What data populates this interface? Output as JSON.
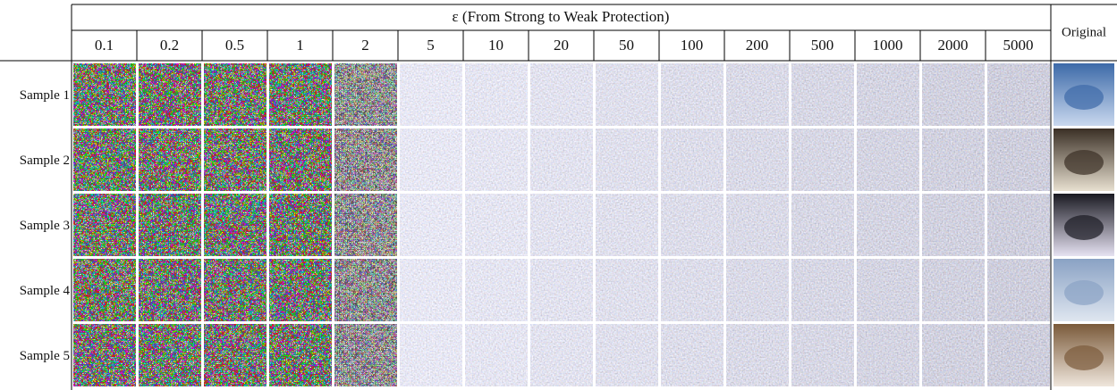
{
  "header": {
    "title": "ε  (From Strong to Weak Protection)",
    "columns": [
      "0.1",
      "0.2",
      "0.5",
      "1",
      "2",
      "5",
      "10",
      "20",
      "50",
      "100",
      "200",
      "500",
      "1000",
      "2000",
      "5000"
    ],
    "original": "Original"
  },
  "rows": [
    "Sample 1",
    "Sample 2",
    "Sample 3",
    "Sample 4",
    "Sample 5"
  ]
}
